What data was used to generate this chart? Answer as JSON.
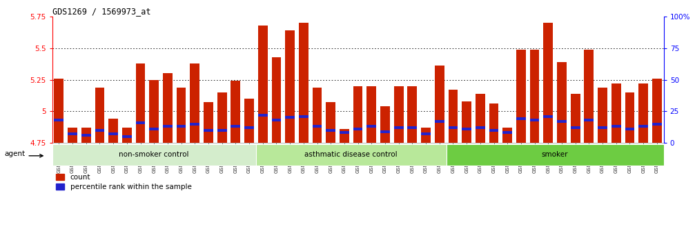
{
  "title": "GDS1269 / 1569973_at",
  "samples": [
    "GSM38345",
    "GSM38346",
    "GSM38348",
    "GSM38350",
    "GSM38351",
    "GSM38353",
    "GSM38355",
    "GSM38356",
    "GSM38358",
    "GSM38362",
    "GSM38368",
    "GSM38371",
    "GSM38373",
    "GSM38377",
    "GSM38385",
    "GSM38361",
    "GSM38363",
    "GSM38364",
    "GSM38365",
    "GSM38370",
    "GSM38372",
    "GSM38375",
    "GSM38378",
    "GSM38379",
    "GSM38381",
    "GSM38383",
    "GSM38386",
    "GSM38387",
    "GSM38388",
    "GSM38389",
    "GSM38347",
    "GSM38349",
    "GSM38352",
    "GSM38354",
    "GSM38357",
    "GSM38359",
    "GSM38360",
    "GSM38366",
    "GSM38367",
    "GSM38369",
    "GSM38374",
    "GSM38376",
    "GSM38380",
    "GSM38382",
    "GSM38384"
  ],
  "bar_values": [
    5.26,
    4.87,
    4.87,
    5.19,
    4.94,
    4.87,
    5.38,
    5.25,
    5.3,
    5.19,
    5.38,
    5.07,
    5.15,
    5.24,
    5.1,
    5.68,
    5.43,
    5.64,
    5.7,
    5.19,
    5.07,
    4.86,
    5.2,
    5.2,
    5.04,
    5.2,
    5.2,
    4.87,
    5.36,
    5.17,
    5.08,
    5.14,
    5.06,
    4.87,
    5.49,
    5.49,
    5.7,
    5.39,
    5.14,
    5.49,
    5.19,
    5.22,
    5.15,
    5.22,
    5.26
  ],
  "percentile_values": [
    4.93,
    4.82,
    4.81,
    4.85,
    4.82,
    4.8,
    4.91,
    4.86,
    4.88,
    4.88,
    4.9,
    4.85,
    4.85,
    4.88,
    4.87,
    4.97,
    4.93,
    4.95,
    4.96,
    4.88,
    4.85,
    4.83,
    4.86,
    4.88,
    4.84,
    4.87,
    4.87,
    4.82,
    4.92,
    4.87,
    4.86,
    4.87,
    4.85,
    4.83,
    4.94,
    4.93,
    4.96,
    4.92,
    4.87,
    4.93,
    4.87,
    4.88,
    4.86,
    4.88,
    4.9
  ],
  "groups": [
    {
      "label": "non-smoker control",
      "start": 0,
      "end": 15,
      "color": "#d4edcc"
    },
    {
      "label": "asthmatic disease control",
      "start": 15,
      "end": 29,
      "color": "#b8e89a"
    },
    {
      "label": "smoker",
      "start": 29,
      "end": 45,
      "color": "#6dcc42"
    }
  ],
  "ymin": 4.75,
  "ymax": 5.75,
  "yticks": [
    4.75,
    5.0,
    5.25,
    5.5,
    5.75
  ],
  "ytick_labels": [
    "4.75",
    "5",
    "5.25",
    "5.5",
    "5.75"
  ],
  "right_yticks": [
    0,
    25,
    50,
    75,
    100
  ],
  "right_ytick_labels": [
    "0",
    "25",
    "50",
    "75",
    "100%"
  ],
  "bar_color": "#cc2200",
  "percentile_color": "#2222cc",
  "legend_count_label": "count",
  "legend_percentile_label": "percentile rank within the sample",
  "agent_label": "agent",
  "gridlines": [
    5.0,
    5.25,
    5.5
  ]
}
